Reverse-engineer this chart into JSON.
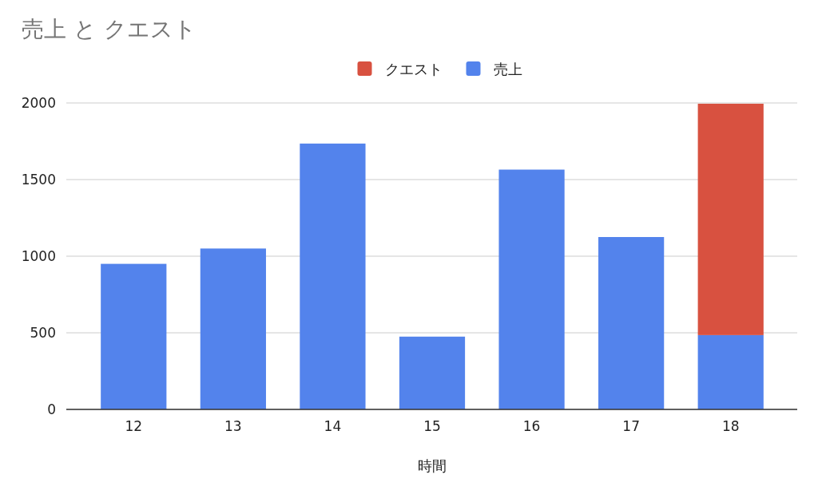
{
  "chart_data": {
    "type": "bar",
    "stacked": true,
    "title": "売上 と クエスト",
    "xlabel": "時間",
    "categories": [
      "12",
      "13",
      "14",
      "15",
      "16",
      "17",
      "18"
    ],
    "series": [
      {
        "name": "売上",
        "color": "#5383ec",
        "values": [
          950,
          1050,
          1735,
          475,
          1565,
          1125,
          485
        ]
      },
      {
        "name": "クエスト",
        "color": "#d85140",
        "values": [
          null,
          null,
          null,
          null,
          null,
          null,
          1510
        ]
      }
    ],
    "ylim": [
      0,
      2000
    ],
    "yticks": [
      0,
      500,
      1000,
      1500,
      2000
    ],
    "grid": "y",
    "legend": "top"
  }
}
